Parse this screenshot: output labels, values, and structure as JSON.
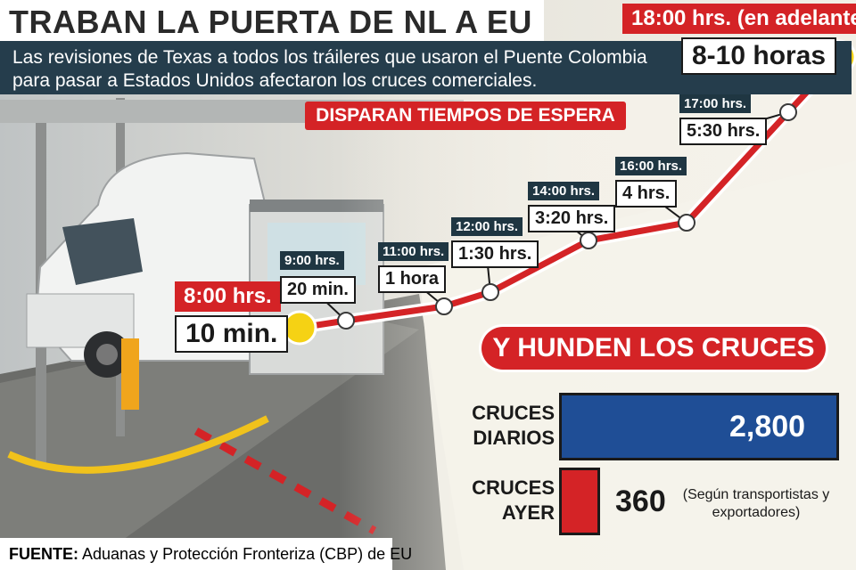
{
  "title": "TRABAN LA PUERTA DE NL A EU",
  "intro": "Las revisiones de Texas a todos los tráileres que usaron el Puente Colombia para pasar a Estados Unidos afectaron los cruces comerciales.",
  "section_wait": "DISPARAN TIEMPOS DE ESPERA",
  "section_cruces": "Y HUNDEN LOS CRUCES",
  "source_label": "FUENTE:",
  "source_text": "Aduanas y Protección Fronteriza (CBP) de EU",
  "colors": {
    "red": "#d42326",
    "navy": "#1f3642",
    "blue": "#1f4e96",
    "yellow": "#f5d214"
  },
  "chart_data": [
    {
      "type": "line",
      "title": "DISPARAN TIEMPOS DE ESPERA",
      "points": [
        {
          "time": "8:00 hrs.",
          "label": "10 min.",
          "minutes": 10
        },
        {
          "time": "9:00 hrs.",
          "label": "20 min.",
          "minutes": 20
        },
        {
          "time": "11:00 hrs.",
          "label": "1 hora",
          "minutes": 60
        },
        {
          "time": "12:00 hrs.",
          "label": "1:30 hrs.",
          "minutes": 90
        },
        {
          "time": "14:00 hrs.",
          "label": "3:20 hrs.",
          "minutes": 200
        },
        {
          "time": "16:00 hrs.",
          "label": "4 hrs.",
          "minutes": 240
        },
        {
          "time": "17:00 hrs.",
          "label": "5:30 hrs.",
          "minutes": 330
        },
        {
          "time": "18:00 hrs. (en adelante)",
          "label": "8-10 horas",
          "minutes": 540
        }
      ]
    },
    {
      "type": "bar",
      "title": "Y HUNDEN LOS CRUCES",
      "categories": [
        "CRUCES DIARIOS",
        "CRUCES AYER"
      ],
      "values": [
        2800,
        360
      ],
      "value_labels": [
        "2,800",
        "360"
      ],
      "row_labels": [
        [
          "CRUCES",
          "DIARIOS"
        ],
        [
          "CRUCES",
          "AYER"
        ]
      ],
      "note": "(Según transportistas y exportadores)"
    }
  ]
}
